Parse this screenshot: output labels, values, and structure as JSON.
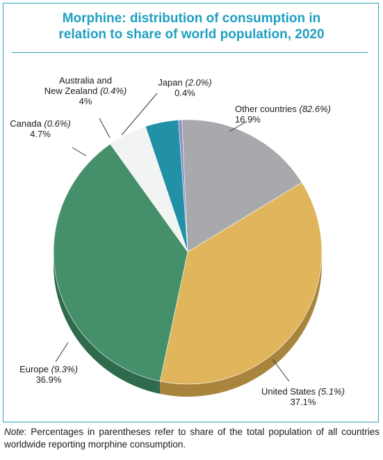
{
  "chart_data": {
    "type": "pie",
    "title_lines": [
      "Morphine: distribution of consumption in",
      "relation to share of world population, 2020"
    ],
    "slices": [
      {
        "label": "Other countries",
        "population_share": "(82.6%)",
        "value": 16.9,
        "value_label": "16.9%",
        "color": "#a8a9ad",
        "side_color": "#7d7e82"
      },
      {
        "label": "United States",
        "population_share": "(5.1%)",
        "value": 37.1,
        "value_label": "37.1%",
        "color": "#e1b55c",
        "side_color": "#a9843c"
      },
      {
        "label": "Europe",
        "population_share": "(9.3%)",
        "value": 36.9,
        "value_label": "36.9%",
        "color": "#45906a",
        "side_color": "#2f6a4c"
      },
      {
        "label": "Canada",
        "population_share": "(0.6%)",
        "value": 4.7,
        "value_label": "4.7%",
        "color": "#f2f3f3",
        "side_color": "#c9caca"
      },
      {
        "label": "Australia and New Zealand",
        "label_lines": [
          "Australia and",
          "New Zealand"
        ],
        "population_share": "(0.4%)",
        "value": 4.0,
        "value_label": "4%",
        "color": "#2291a8",
        "side_color": "#16677a"
      },
      {
        "label": "Japan",
        "population_share": "(2.0%)",
        "value": 0.4,
        "value_label": "0.4%",
        "color": "#8d8fc6",
        "side_color": "#686aa0"
      }
    ]
  },
  "note": {
    "label": "Note",
    "text": ": Percentages in parentheses refer to share of the total population of all countries worldwide reporting morphine consumption."
  },
  "colors": {
    "accent": "#1e9fc0",
    "frame": "#2aa3c2"
  }
}
